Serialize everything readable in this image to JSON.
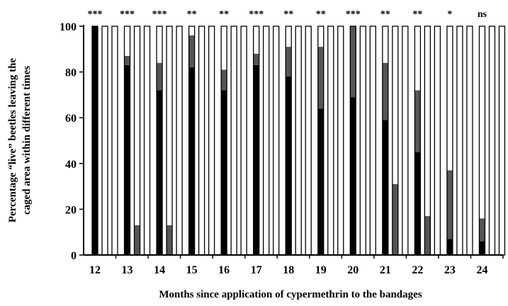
{
  "chart_data": {
    "type": "bar",
    "stacked": true,
    "title": "",
    "xlabel": "Months since application of cypermethrin to the bandages",
    "ylabel_line1": "Percentage “live” beetles leaving the",
    "ylabel_line2": "caged area within different times",
    "ylim": [
      0,
      100
    ],
    "yticks": [
      0,
      20,
      40,
      60,
      80,
      100
    ],
    "grid": false,
    "legend": "none",
    "bars_per_group": 3,
    "groups": [
      {
        "month": "12",
        "sig": "***",
        "bars": [
          [
            100,
            0,
            0
          ],
          [
            0,
            0,
            0
          ],
          [
            0,
            0,
            0
          ]
        ]
      },
      {
        "month": "13",
        "sig": "***",
        "bars": [
          [
            83,
            4,
            13
          ],
          [
            0,
            13,
            0
          ],
          [
            0,
            0,
            0
          ]
        ]
      },
      {
        "month": "14",
        "sig": "***",
        "bars": [
          [
            72,
            12,
            16
          ],
          [
            0,
            13,
            0
          ],
          [
            0,
            0,
            0
          ]
        ]
      },
      {
        "month": "15",
        "sig": "**",
        "bars": [
          [
            82,
            14,
            4
          ],
          [
            0,
            0,
            0
          ],
          [
            0,
            0,
            0
          ]
        ]
      },
      {
        "month": "16",
        "sig": "**",
        "bars": [
          [
            72,
            9,
            19
          ],
          [
            0,
            0,
            0
          ],
          [
            0,
            0,
            0
          ]
        ]
      },
      {
        "month": "17",
        "sig": "***",
        "bars": [
          [
            83,
            5,
            12
          ],
          [
            0,
            0,
            0
          ],
          [
            0,
            0,
            0
          ]
        ]
      },
      {
        "month": "18",
        "sig": "**",
        "bars": [
          [
            78,
            13,
            9
          ],
          [
            0,
            0,
            0
          ],
          [
            0,
            0,
            0
          ]
        ]
      },
      {
        "month": "19",
        "sig": "**",
        "bars": [
          [
            64,
            27,
            9
          ],
          [
            0,
            0,
            0
          ],
          [
            0,
            0,
            0
          ]
        ]
      },
      {
        "month": "20",
        "sig": "***",
        "bars": [
          [
            69,
            31,
            0
          ],
          [
            0,
            0,
            0
          ],
          [
            0,
            0,
            0
          ]
        ]
      },
      {
        "month": "21",
        "sig": "**",
        "bars": [
          [
            59,
            25,
            16
          ],
          [
            0,
            31,
            0
          ],
          [
            0,
            0,
            0
          ]
        ]
      },
      {
        "month": "22",
        "sig": "**",
        "bars": [
          [
            45,
            27,
            28
          ],
          [
            0,
            17,
            0
          ],
          [
            0,
            0,
            0
          ]
        ]
      },
      {
        "month": "23",
        "sig": "*",
        "bars": [
          [
            7,
            30,
            63
          ],
          [
            0,
            0,
            0
          ],
          [
            0,
            0,
            0
          ]
        ]
      },
      {
        "month": "24",
        "sig": "ns",
        "bars": [
          [
            6,
            10,
            84
          ],
          [
            0,
            0,
            0
          ],
          [
            0,
            0,
            0
          ]
        ]
      }
    ],
    "colors": {
      "segment1": "#000000",
      "segment2": "#555555",
      "segment3": "#ffffff",
      "outline": "#000000"
    }
  }
}
